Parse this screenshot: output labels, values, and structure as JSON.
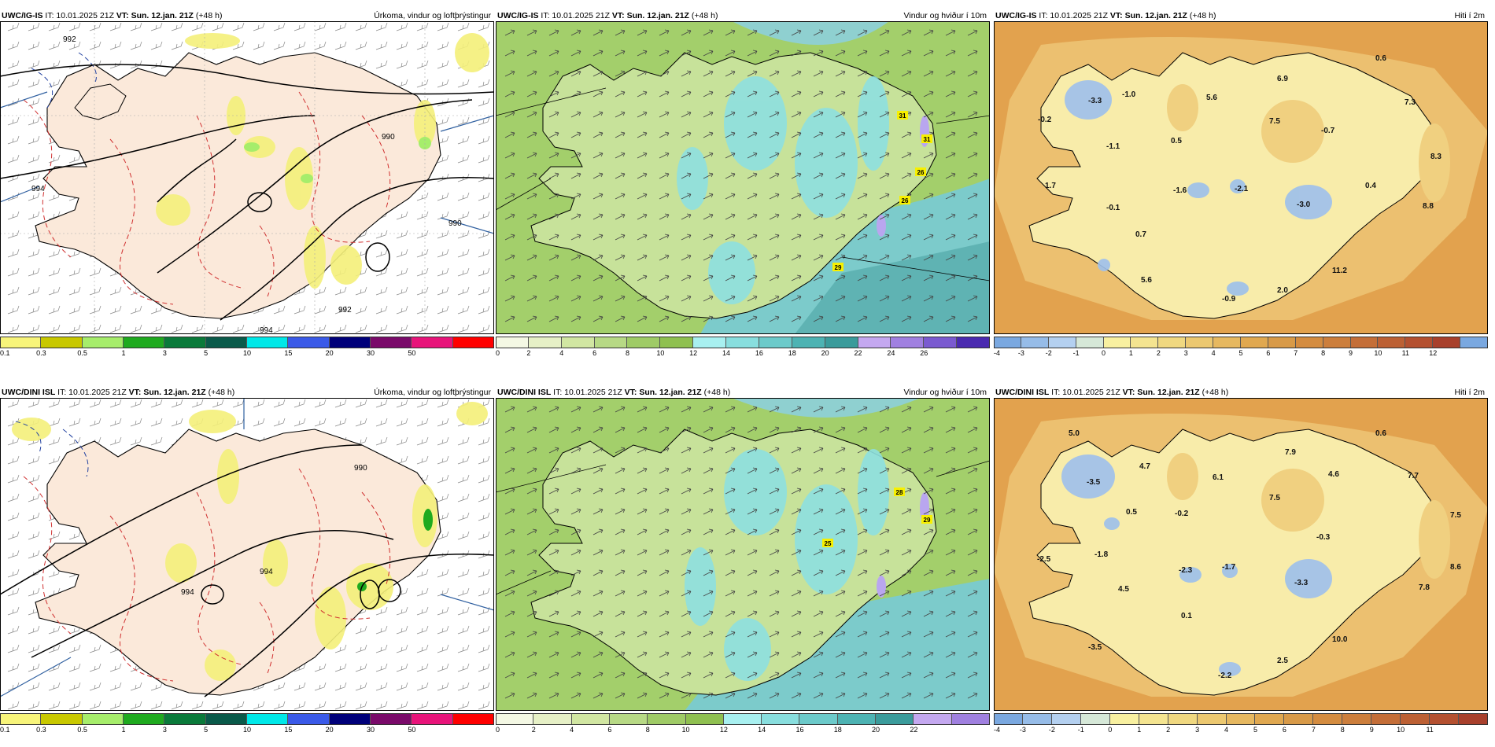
{
  "rows": [
    {
      "model": "UWC/IG-IS",
      "titles": [
        {
          "it": "IT: 10.01.2025 21Z",
          "vt_label": "VT:",
          "vt": "Sun. 12.jan. 21Z",
          "lead": "(+48 h)",
          "right": "Úrkoma, vindur og loftþrýstingur"
        },
        {
          "it": "IT: 10.01.2025 21Z",
          "vt_label": "VT:",
          "vt": "Sun. 12.jan. 21Z",
          "lead": "(+48 h)",
          "right": "Vindur og hviður í 10m"
        },
        {
          "it": "IT: 10.01.2025 21Z",
          "vt_label": "VT:",
          "vt": "Sun. 12.jan. 21Z",
          "lead": "(+48 h)",
          "right": "Hiti í 2m"
        }
      ]
    },
    {
      "model": "UWC/DINI ISL",
      "titles": [
        {
          "it": "IT: 10.01.2025 21Z",
          "vt_label": "VT:",
          "vt": "Sun. 12.jan. 21Z",
          "lead": "(+48 h)",
          "right": "Úrkoma, vindur og loftþrýstingur"
        },
        {
          "it": "IT: 10.01.2025 21Z",
          "vt_label": "VT:",
          "vt": "Sun. 12.jan. 21Z",
          "lead": "(+48 h)",
          "right": "Vindur og hviður í 10m"
        },
        {
          "it": "IT: 10.01.2025 21Z",
          "vt_label": "VT:",
          "vt": "Sun. 12.jan. 21Z",
          "lead": "(+48 h)",
          "right": "Hiti í 2m"
        }
      ]
    }
  ],
  "precip_legend": {
    "labels": [
      "0.1",
      "0.3",
      "0.5",
      "1",
      "3",
      "5",
      "10",
      "15",
      "20",
      "30",
      "50"
    ],
    "colors": [
      "#f7f47a",
      "#c8c800",
      "#a6ed6b",
      "#1faa1f",
      "#0a7a3a",
      "#0a5a4a",
      "#00e8e8",
      "#3a5ae8",
      "#00007a",
      "#7a0a6a",
      "#e8147a",
      "#ff0000"
    ]
  },
  "wind_legend": {
    "labels": [
      "0",
      "2",
      "4",
      "6",
      "8",
      "10",
      "12",
      "14",
      "16",
      "18",
      "20",
      "22",
      "24",
      "26"
    ],
    "colors": [
      "#f4f8e4",
      "#e6f0c6",
      "#d1e6a2",
      "#b7d985",
      "#9fcb66",
      "#8fc050",
      "#a8f0f0",
      "#88dede",
      "#6ccaca",
      "#4db3b3",
      "#3a9b9b",
      "#c4a8f0",
      "#a080e0",
      "#7a5ad0",
      "#4a2ab0",
      "#ff9a9a",
      "#e06060"
    ]
  },
  "wind_legend_bottom": {
    "labels": [
      "0",
      "2",
      "4",
      "6",
      "8",
      "10",
      "12",
      "14",
      "16",
      "18",
      "20",
      "22"
    ]
  },
  "temp_legend": {
    "labels": [
      "-4",
      "-3",
      "-2",
      "-1",
      "0",
      "1",
      "2",
      "3",
      "4",
      "5",
      "6",
      "7",
      "8",
      "9",
      "10",
      "11",
      "12"
    ],
    "colors": [
      "#7aa8e0",
      "#96bce8",
      "#b4d0f0",
      "#d6e8d8",
      "#f8f0a0",
      "#f4e490",
      "#f0d880",
      "#ecc870",
      "#e6b860",
      "#e0a850",
      "#d89a48",
      "#d48c40",
      "#cc7e3c",
      "#c46e38",
      "#bc6034",
      "#b45030",
      "#a8402c"
    ]
  },
  "temp_legend_bottom": {
    "labels": [
      "-4",
      "-3",
      "-2",
      "-1",
      "0",
      "1",
      "2",
      "3",
      "4",
      "5",
      "6",
      "7",
      "8",
      "9",
      "10",
      "11"
    ]
  },
  "row1_temp_values": [
    "0.6",
    "-3.3",
    "-1.0",
    "5.6",
    "6.9",
    "7.3",
    "-0.2",
    "0.5",
    "7.5",
    "-0.7",
    "-1.1",
    "8.3",
    "1.7",
    "-1.6",
    "-2.1",
    "0.4",
    "-0.1",
    "-3.0",
    "8.8",
    "0.7",
    "11.2",
    "5.6",
    "-0.9",
    "2.0"
  ],
  "row2_temp_values": [
    "5.0",
    "0.6",
    "7.9",
    "4.7",
    "6.1",
    "4.6",
    "7.7",
    "-3.5",
    "7.5",
    "0.5",
    "-0.2",
    "-0.3",
    "7.5",
    "-1.8",
    "-2.5",
    "-2.3",
    "-1.7",
    "-3.3",
    "8.6",
    "4.5",
    "7.8",
    "0.1",
    "10.0",
    "-3.5",
    "2.5",
    "-2.2"
  ],
  "row1_gusts": [
    "31",
    "31",
    "26",
    "26",
    "29"
  ],
  "row2_gusts": [
    "28",
    "29",
    "25"
  ],
  "isobars_top": [
    "992",
    "994",
    "990",
    "990",
    "992",
    "994"
  ],
  "isobars_bottom": [
    "990",
    "994",
    "994"
  ]
}
